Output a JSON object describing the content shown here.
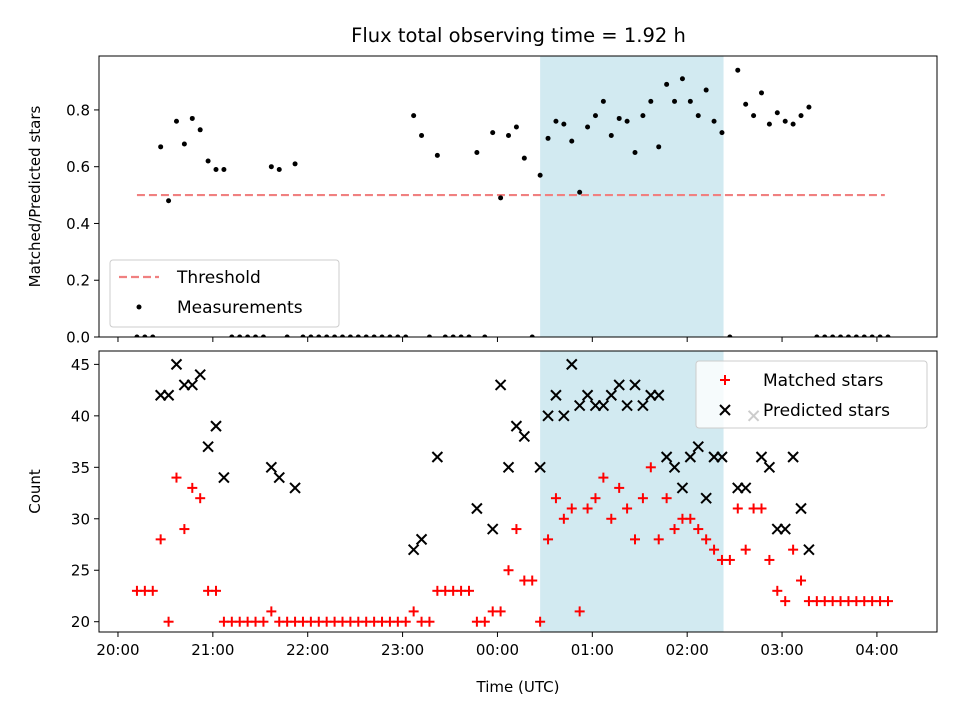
{
  "title": "Flux total observing time = 1.92 h",
  "shaded_color": "#add8e6",
  "threshold_color": "#f08080",
  "chart_data": [
    {
      "type": "scatter",
      "ylabel": "Matched/Predicted stars",
      "ylim": [
        0,
        0.99
      ],
      "yticks": [
        "0.0",
        "0.2",
        "0.4",
        "0.6",
        "0.8"
      ],
      "ytick_values": [
        0,
        0.2,
        0.4,
        0.6,
        0.8
      ],
      "xlim": [
        "19:48",
        "04:38"
      ],
      "shaded_span": [
        "00:27",
        "02:23"
      ],
      "legend_position": "lower-left",
      "threshold": {
        "name": "Threshold",
        "y": 0.5,
        "x": [
          "20:12",
          "04:05"
        ],
        "color": "#f08080"
      },
      "measurements": {
        "name": "Measurements",
        "color": "#000000",
        "points": [
          [
            "20:12",
            0
          ],
          [
            "20:17",
            0
          ],
          [
            "20:22",
            0
          ],
          [
            "20:27",
            0.67
          ],
          [
            "20:32",
            0.48
          ],
          [
            "20:37",
            0.76
          ],
          [
            "20:42",
            0.68
          ],
          [
            "20:47",
            0.77
          ],
          [
            "20:52",
            0.73
          ],
          [
            "20:57",
            0.62
          ],
          [
            "21:02",
            0.59
          ],
          [
            "21:07",
            0.59
          ],
          [
            "21:12",
            0
          ],
          [
            "21:17",
            0
          ],
          [
            "21:22",
            0
          ],
          [
            "21:27",
            0
          ],
          [
            "21:32",
            0
          ],
          [
            "21:37",
            0.6
          ],
          [
            "21:42",
            0.59
          ],
          [
            "21:47",
            0
          ],
          [
            "21:52",
            0.61
          ],
          [
            "21:57",
            0
          ],
          [
            "22:02",
            0
          ],
          [
            "22:07",
            0
          ],
          [
            "22:12",
            0
          ],
          [
            "22:17",
            0
          ],
          [
            "22:22",
            0
          ],
          [
            "22:27",
            0
          ],
          [
            "22:32",
            0
          ],
          [
            "22:37",
            0
          ],
          [
            "22:42",
            0
          ],
          [
            "22:47",
            0
          ],
          [
            "22:52",
            0
          ],
          [
            "22:57",
            0
          ],
          [
            "23:02",
            0
          ],
          [
            "23:07",
            0.78
          ],
          [
            "23:12",
            0.71
          ],
          [
            "23:17",
            0
          ],
          [
            "23:22",
            0.64
          ],
          [
            "23:27",
            0
          ],
          [
            "23:32",
            0
          ],
          [
            "23:37",
            0
          ],
          [
            "23:42",
            0
          ],
          [
            "23:47",
            0.65
          ],
          [
            "23:52",
            0
          ],
          [
            "23:57",
            0.72
          ],
          [
            "00:02",
            0.49
          ],
          [
            "00:07",
            0.71
          ],
          [
            "00:12",
            0.74
          ],
          [
            "00:17",
            0.63
          ],
          [
            "00:22",
            0
          ],
          [
            "00:27",
            0.57
          ],
          [
            "00:32",
            0.7
          ],
          [
            "00:37",
            0.76
          ],
          [
            "00:42",
            0.75
          ],
          [
            "00:47",
            0.69
          ],
          [
            "00:52",
            0.51
          ],
          [
            "00:57",
            0.74
          ],
          [
            "01:02",
            0.78
          ],
          [
            "01:07",
            0.83
          ],
          [
            "01:12",
            0.71
          ],
          [
            "01:17",
            0.77
          ],
          [
            "01:22",
            0.76
          ],
          [
            "01:27",
            0.65
          ],
          [
            "01:32",
            0.78
          ],
          [
            "01:37",
            0.83
          ],
          [
            "01:42",
            0.67
          ],
          [
            "01:47",
            0.89
          ],
          [
            "01:52",
            0.83
          ],
          [
            "01:57",
            0.91
          ],
          [
            "02:02",
            0.83
          ],
          [
            "02:07",
            0.78
          ],
          [
            "02:12",
            0.87
          ],
          [
            "02:17",
            0.76
          ],
          [
            "02:22",
            0.72
          ],
          [
            "02:27",
            0
          ],
          [
            "02:32",
            0.94
          ],
          [
            "02:37",
            0.82
          ],
          [
            "02:42",
            0.78
          ],
          [
            "02:47",
            0.86
          ],
          [
            "02:52",
            0.75
          ],
          [
            "02:57",
            0.79
          ],
          [
            "03:02",
            0.76
          ],
          [
            "03:07",
            0.75
          ],
          [
            "03:12",
            0.78
          ],
          [
            "03:17",
            0.81
          ],
          [
            "03:22",
            0
          ],
          [
            "03:27",
            0
          ],
          [
            "03:32",
            0
          ],
          [
            "03:37",
            0
          ],
          [
            "03:42",
            0
          ],
          [
            "03:47",
            0
          ],
          [
            "03:52",
            0
          ],
          [
            "03:57",
            0
          ],
          [
            "04:02",
            0
          ],
          [
            "04:07",
            0
          ]
        ]
      }
    },
    {
      "type": "scatter",
      "ylabel": "Count",
      "xlabel": "Time (UTC)",
      "ylim": [
        19,
        46.3
      ],
      "yticks": [
        "20",
        "25",
        "30",
        "35",
        "40",
        "45"
      ],
      "ytick_values": [
        20,
        25,
        30,
        35,
        40,
        45
      ],
      "xlim": [
        "19:48",
        "04:38"
      ],
      "xticks": [
        "20:00",
        "21:00",
        "22:00",
        "23:00",
        "00:00",
        "01:00",
        "02:00",
        "03:00",
        "04:00"
      ],
      "shaded_span": [
        "00:27",
        "02:23"
      ],
      "legend_position": "upper-right",
      "series": [
        {
          "name": "Matched stars",
          "marker": "plus",
          "color": "#ff0000",
          "points": [
            [
              "20:12",
              23
            ],
            [
              "20:17",
              23
            ],
            [
              "20:22",
              23
            ],
            [
              "20:27",
              28
            ],
            [
              "20:32",
              20
            ],
            [
              "20:37",
              34
            ],
            [
              "20:42",
              29
            ],
            [
              "20:47",
              33
            ],
            [
              "20:52",
              32
            ],
            [
              "20:57",
              23
            ],
            [
              "21:02",
              23
            ],
            [
              "21:07",
              20
            ],
            [
              "21:12",
              20
            ],
            [
              "21:17",
              20
            ],
            [
              "21:22",
              20
            ],
            [
              "21:27",
              20
            ],
            [
              "21:32",
              20
            ],
            [
              "21:37",
              21
            ],
            [
              "21:42",
              20
            ],
            [
              "21:47",
              20
            ],
            [
              "21:52",
              20
            ],
            [
              "21:57",
              20
            ],
            [
              "22:02",
              20
            ],
            [
              "22:07",
              20
            ],
            [
              "22:12",
              20
            ],
            [
              "22:17",
              20
            ],
            [
              "22:22",
              20
            ],
            [
              "22:27",
              20
            ],
            [
              "22:32",
              20
            ],
            [
              "22:37",
              20
            ],
            [
              "22:42",
              20
            ],
            [
              "22:47",
              20
            ],
            [
              "22:52",
              20
            ],
            [
              "22:57",
              20
            ],
            [
              "23:02",
              20
            ],
            [
              "23:07",
              21
            ],
            [
              "23:12",
              20
            ],
            [
              "23:17",
              20
            ],
            [
              "23:22",
              23
            ],
            [
              "23:27",
              23
            ],
            [
              "23:32",
              23
            ],
            [
              "23:37",
              23
            ],
            [
              "23:42",
              23
            ],
            [
              "23:47",
              20
            ],
            [
              "23:52",
              20
            ],
            [
              "23:57",
              21
            ],
            [
              "00:02",
              21
            ],
            [
              "00:07",
              25
            ],
            [
              "00:12",
              29
            ],
            [
              "00:17",
              24
            ],
            [
              "00:22",
              24
            ],
            [
              "00:27",
              20
            ],
            [
              "00:32",
              28
            ],
            [
              "00:37",
              32
            ],
            [
              "00:42",
              30
            ],
            [
              "00:47",
              31
            ],
            [
              "00:52",
              21
            ],
            [
              "00:57",
              31
            ],
            [
              "01:02",
              32
            ],
            [
              "01:07",
              34
            ],
            [
              "01:12",
              30
            ],
            [
              "01:17",
              33
            ],
            [
              "01:22",
              31
            ],
            [
              "01:27",
              28
            ],
            [
              "01:32",
              32
            ],
            [
              "01:37",
              35
            ],
            [
              "01:42",
              28
            ],
            [
              "01:47",
              32
            ],
            [
              "01:52",
              29
            ],
            [
              "01:57",
              30
            ],
            [
              "02:02",
              30
            ],
            [
              "02:07",
              29
            ],
            [
              "02:12",
              28
            ],
            [
              "02:17",
              27
            ],
            [
              "02:22",
              26
            ],
            [
              "02:27",
              26
            ],
            [
              "02:32",
              31
            ],
            [
              "02:37",
              27
            ],
            [
              "02:42",
              31
            ],
            [
              "02:47",
              31
            ],
            [
              "02:52",
              26
            ],
            [
              "02:57",
              23
            ],
            [
              "03:02",
              22
            ],
            [
              "03:07",
              27
            ],
            [
              "03:12",
              24
            ],
            [
              "03:17",
              22
            ],
            [
              "03:22",
              22
            ],
            [
              "03:27",
              22
            ],
            [
              "03:32",
              22
            ],
            [
              "03:37",
              22
            ],
            [
              "03:42",
              22
            ],
            [
              "03:47",
              22
            ],
            [
              "03:52",
              22
            ],
            [
              "03:57",
              22
            ],
            [
              "04:02",
              22
            ],
            [
              "04:07",
              22
            ]
          ]
        },
        {
          "name": "Predicted stars",
          "marker": "x",
          "color": "#000000",
          "points": [
            [
              "20:27",
              42
            ],
            [
              "20:32",
              42
            ],
            [
              "20:37",
              45
            ],
            [
              "20:42",
              43
            ],
            [
              "20:47",
              43
            ],
            [
              "20:52",
              44
            ],
            [
              "20:57",
              37
            ],
            [
              "21:02",
              39
            ],
            [
              "21:07",
              34
            ],
            [
              "21:37",
              35
            ],
            [
              "21:42",
              34
            ],
            [
              "21:52",
              33
            ],
            [
              "23:07",
              27
            ],
            [
              "23:12",
              28
            ],
            [
              "23:22",
              36
            ],
            [
              "23:47",
              31
            ],
            [
              "23:57",
              29
            ],
            [
              "00:02",
              43
            ],
            [
              "00:07",
              35
            ],
            [
              "00:12",
              39
            ],
            [
              "00:17",
              38
            ],
            [
              "00:27",
              35
            ],
            [
              "00:32",
              40
            ],
            [
              "00:37",
              42
            ],
            [
              "00:42",
              40
            ],
            [
              "00:47",
              45
            ],
            [
              "00:52",
              41
            ],
            [
              "00:57",
              42
            ],
            [
              "01:02",
              41
            ],
            [
              "01:07",
              41
            ],
            [
              "01:12",
              42
            ],
            [
              "01:17",
              43
            ],
            [
              "01:22",
              41
            ],
            [
              "01:27",
              43
            ],
            [
              "01:32",
              41
            ],
            [
              "01:37",
              42
            ],
            [
              "01:42",
              42
            ],
            [
              "01:47",
              36
            ],
            [
              "01:52",
              35
            ],
            [
              "01:57",
              33
            ],
            [
              "02:02",
              36
            ],
            [
              "02:07",
              37
            ],
            [
              "02:12",
              32
            ],
            [
              "02:17",
              36
            ],
            [
              "02:22",
              36
            ],
            [
              "02:32",
              33
            ],
            [
              "02:37",
              33
            ],
            [
              "02:42",
              40
            ],
            [
              "02:47",
              36
            ],
            [
              "02:52",
              35
            ],
            [
              "02:57",
              29
            ],
            [
              "03:02",
              29
            ],
            [
              "03:07",
              36
            ],
            [
              "03:12",
              31
            ],
            [
              "03:17",
              27
            ]
          ]
        }
      ]
    }
  ]
}
